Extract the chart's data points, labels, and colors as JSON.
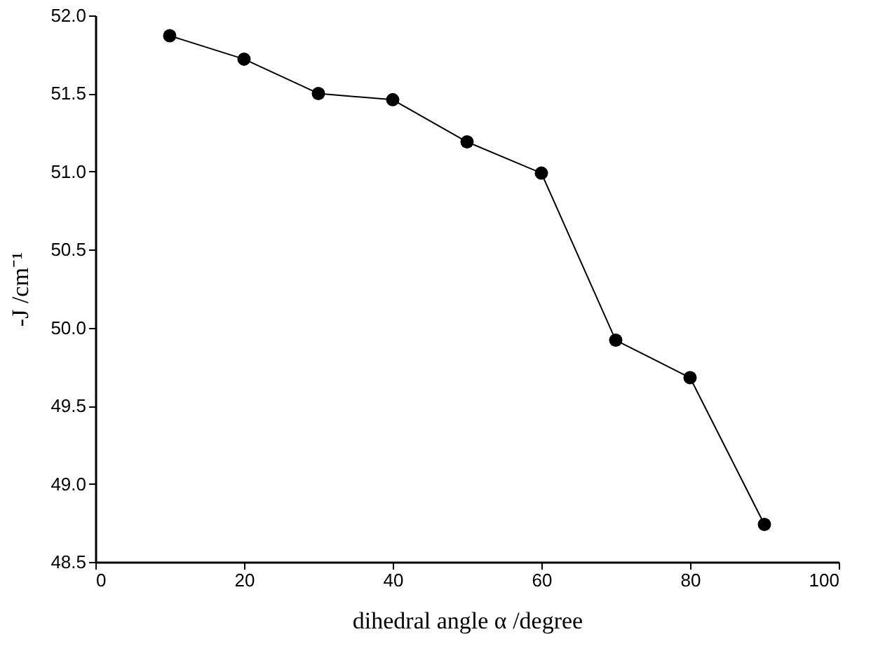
{
  "chart_data": {
    "type": "line",
    "xlabel": "dihedral angle α /degree",
    "ylabel": "-J /cm⁻¹",
    "x": [
      10,
      20,
      30,
      40,
      50,
      60,
      70,
      80,
      90
    ],
    "series": [
      {
        "color": "#000000",
        "values": [
          51.87,
          51.72,
          51.5,
          51.46,
          51.19,
          50.99,
          49.92,
          49.68,
          48.74
        ]
      }
    ],
    "xlim": [
      0,
      100
    ],
    "xticks": [
      0,
      20,
      40,
      60,
      80,
      100
    ],
    "ylim": [
      48.5,
      52.0
    ],
    "yticks": [
      {
        "value": 48.5,
        "label": "48.5"
      },
      {
        "value": 49,
        "label": "49.0"
      },
      {
        "value": 49.5,
        "label": "49.5"
      },
      {
        "value": 50,
        "label": "50.0"
      },
      {
        "value": 50.5,
        "label": "50.5"
      },
      {
        "value": 51,
        "label": "51.0"
      },
      {
        "value": 51.5,
        "label": "51.5"
      },
      {
        "value": 52,
        "label": "52.0"
      }
    ],
    "marker": "circle",
    "line_style": "solid"
  }
}
